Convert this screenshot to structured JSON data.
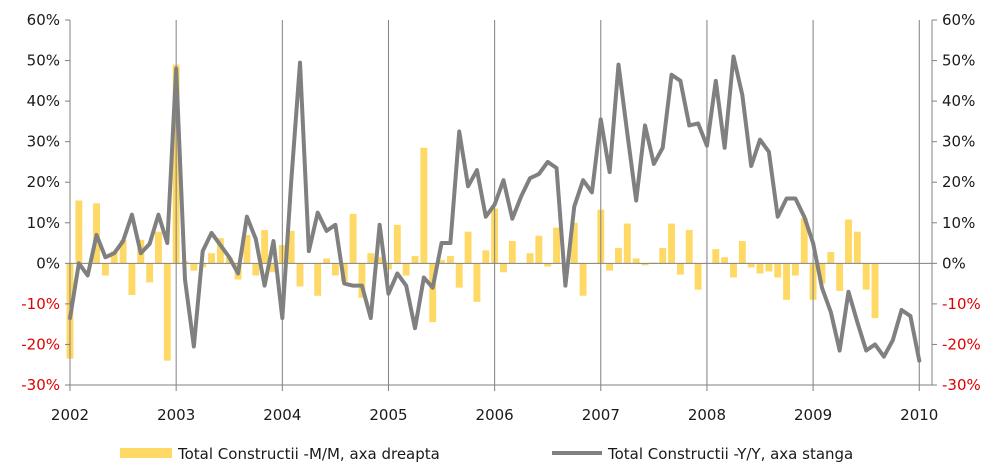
{
  "chart_data": {
    "type": "bar+line",
    "x_ticks": [
      "2002",
      "2003",
      "2004",
      "2005",
      "2006",
      "2007",
      "2008",
      "2009",
      "2010"
    ],
    "x_range": [
      2002.0,
      2010.12
    ],
    "left_axis": {
      "range": [
        -0.3,
        0.6
      ],
      "ticks": [
        "60%",
        "50%",
        "40%",
        "30%",
        "20%",
        "10%",
        "0%",
        "-10%",
        "-20%",
        "-30%"
      ],
      "negative_color": "#e00000"
    },
    "right_axis": {
      "range": [
        -0.3,
        0.6
      ],
      "ticks": [
        "60%",
        "50%",
        "40%",
        "30%",
        "20%",
        "10%",
        "0%",
        "-10%",
        "-20%",
        "-30%"
      ],
      "negative_color": "#e00000"
    },
    "series": [
      {
        "name": "Total Constructii -M/M, axa dreapta",
        "type": "bar",
        "axis": "right",
        "color": "#ffd966",
        "start": "2002-01",
        "values": [
          -0.235,
          0.155,
          0.0,
          0.148,
          -0.03,
          0.03,
          0.058,
          -0.078,
          0.058,
          -0.047,
          0.078,
          -0.24,
          0.49,
          0.005,
          -0.018,
          -0.01,
          0.025,
          0.062,
          0.015,
          -0.04,
          0.07,
          -0.03,
          0.082,
          -0.022,
          0.045,
          0.08,
          -0.057,
          0.0,
          -0.08,
          0.012,
          -0.03,
          -0.045,
          0.122,
          -0.085,
          0.025,
          0.015,
          -0.015,
          0.095,
          -0.03,
          0.018,
          0.285,
          -0.145,
          0.008,
          0.018,
          -0.06,
          0.078,
          -0.095,
          0.032,
          0.135,
          -0.022,
          0.055,
          0.0,
          0.025,
          0.068,
          -0.008,
          0.088,
          -0.025,
          0.1,
          -0.08,
          0.0,
          0.132,
          -0.018,
          0.038,
          0.098,
          0.012,
          -0.005,
          0.002,
          0.038,
          0.098,
          -0.028,
          0.082,
          -0.065,
          0.0,
          0.035,
          0.015,
          -0.035,
          0.055,
          -0.01,
          -0.025,
          -0.02,
          -0.035,
          -0.09,
          -0.03,
          0.112,
          -0.09,
          -0.05,
          0.028,
          -0.068,
          0.108,
          0.078,
          -0.065,
          -0.135
        ]
      },
      {
        "name": "Total Constructii -Y/Y, axa stanga",
        "type": "line",
        "axis": "left",
        "color": "#808080",
        "start": "2002-01",
        "values": [
          -0.135,
          0.0,
          -0.03,
          0.07,
          0.015,
          0.025,
          0.055,
          0.12,
          0.025,
          0.048,
          0.12,
          0.05,
          0.48,
          -0.04,
          -0.205,
          0.03,
          0.075,
          0.045,
          0.015,
          -0.025,
          0.115,
          0.06,
          -0.055,
          0.055,
          -0.135,
          0.2,
          0.495,
          0.03,
          0.125,
          0.08,
          0.095,
          -0.05,
          -0.055,
          -0.055,
          -0.135,
          0.095,
          -0.075,
          -0.025,
          -0.055,
          -0.16,
          -0.035,
          -0.06,
          0.05,
          0.05,
          0.325,
          0.19,
          0.23,
          0.115,
          0.145,
          0.205,
          0.11,
          0.165,
          0.21,
          0.22,
          0.25,
          0.235,
          -0.055,
          0.14,
          0.205,
          0.175,
          0.355,
          0.225,
          0.49,
          0.32,
          0.155,
          0.34,
          0.245,
          0.285,
          0.465,
          0.45,
          0.34,
          0.345,
          0.29,
          0.45,
          0.285,
          0.51,
          0.415,
          0.24,
          0.305,
          0.275,
          0.115,
          0.16,
          0.16,
          0.115,
          0.05,
          -0.06,
          -0.12,
          -0.215,
          -0.07,
          -0.145,
          -0.215,
          -0.2,
          -0.23,
          -0.19,
          -0.115,
          -0.13,
          -0.24
        ]
      }
    ],
    "legend_position": "bottom",
    "grid": false
  }
}
